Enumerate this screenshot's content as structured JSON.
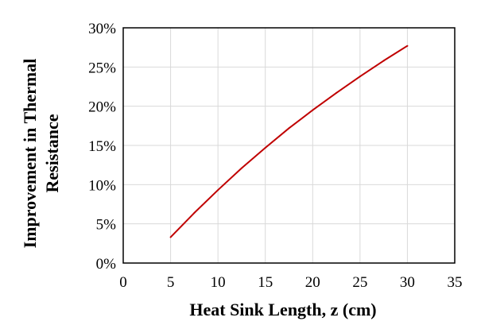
{
  "chart_data": {
    "type": "line",
    "title": "",
    "xlabel": "Heat Sink Length, z (cm)",
    "ylabel_lines": [
      "Improvement in Thermal",
      "Resistance"
    ],
    "xlim": [
      0,
      35
    ],
    "ylim": [
      0,
      30
    ],
    "x_ticks": [
      0,
      5,
      10,
      15,
      20,
      25,
      30,
      35
    ],
    "x_tick_labels": [
      "0",
      "5",
      "10",
      "15",
      "20",
      "25",
      "30",
      "35"
    ],
    "y_ticks": [
      0,
      5,
      10,
      15,
      20,
      25,
      30
    ],
    "y_tick_labels": [
      "0%",
      "5%",
      "10%",
      "15%",
      "20%",
      "25%",
      "30%"
    ],
    "grid": true,
    "line_color": "#c00000",
    "grid_color": "#d9d9d9",
    "series": [
      {
        "x": [
          5,
          7.5,
          10,
          12.5,
          15,
          17.5,
          20,
          22.5,
          25,
          27.5,
          30
        ],
        "y": [
          3.3,
          6.4,
          9.3,
          12.1,
          14.7,
          17.2,
          19.5,
          21.7,
          23.8,
          25.8,
          27.7
        ]
      }
    ]
  }
}
